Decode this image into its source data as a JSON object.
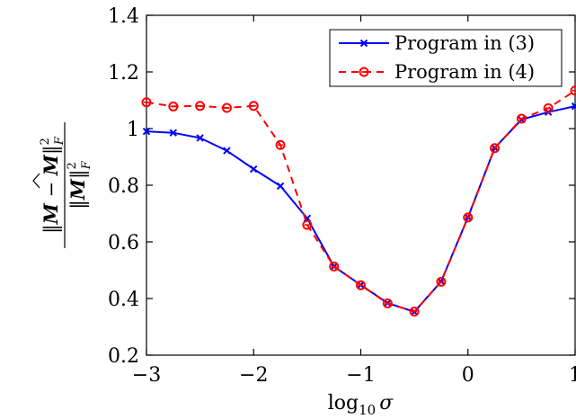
{
  "chart_data": {
    "type": "line",
    "xlabel": "log10 σ",
    "xlabel_main": "log",
    "xlabel_sub": "10",
    "xlabel_var": "σ",
    "ylabel": "‖M̂ − M‖²F / ‖M‖²F",
    "ylabel_num_pre": "‖",
    "ylabel_num_hat": "M",
    "ylabel_num_mid": " − ",
    "ylabel_num_m": "M",
    "ylabel_num_post": "‖",
    "ylabel_sup": "2",
    "ylabel_sub": "F",
    "ylabel_den_pre": "‖",
    "ylabel_den_m": "M",
    "ylabel_den_post": "‖",
    "xlim": [
      -3,
      1
    ],
    "ylim": [
      0.2,
      1.4
    ],
    "xticks": [
      -3,
      -2,
      -1,
      0,
      1
    ],
    "xtick_labels": [
      "−3",
      "−2",
      "−1",
      "0",
      "1"
    ],
    "yticks": [
      0.2,
      0.4,
      0.6,
      0.8,
      1.0,
      1.2,
      1.4
    ],
    "ytick_labels": [
      "0.2",
      "0.4",
      "0.6",
      "0.8",
      "1",
      "1.2",
      "1.4"
    ],
    "grid": false,
    "legend_position": "top-right",
    "x": [
      -3,
      -2.75,
      -2.5,
      -2.25,
      -2,
      -1.75,
      -1.5,
      -1.25,
      -1,
      -0.75,
      -0.5,
      -0.25,
      0,
      0.25,
      0.5,
      0.75,
      1
    ],
    "series": [
      {
        "name": "Program in (3)",
        "color": "#0000ff",
        "line": "solid",
        "marker": "x",
        "values": [
          0.99,
          0.985,
          0.967,
          0.922,
          0.857,
          0.797,
          0.683,
          0.513,
          0.448,
          0.384,
          0.353,
          0.46,
          0.687,
          0.932,
          1.032,
          1.058,
          1.079
        ]
      },
      {
        "name": "Program in (4)",
        "color": "#ff0000",
        "line": "dashed",
        "marker": "o",
        "values": [
          1.093,
          1.078,
          1.08,
          1.073,
          1.08,
          0.942,
          0.66,
          0.513,
          0.447,
          0.383,
          0.354,
          0.459,
          0.686,
          0.931,
          1.035,
          1.072,
          1.134
        ]
      }
    ]
  }
}
